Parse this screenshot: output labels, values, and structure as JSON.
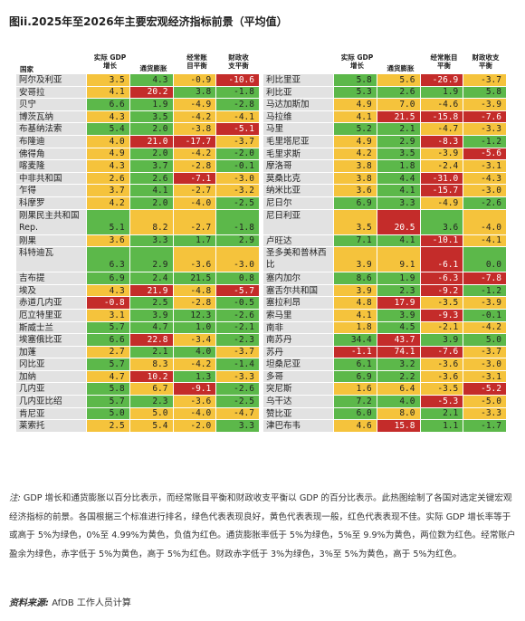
{
  "title": "图ii.2025年至2026年主要宏观经济指标前景（平均值）",
  "headers": {
    "country": "国家",
    "gdp": "实际 GDP\n增长",
    "inflation": "通货膨胀",
    "current_account": "经常账\n目平衡",
    "fiscal": "财政收\n支平衡"
  },
  "headers_right": {
    "gdp": "实际 GDP\n增长",
    "inflation": "通货膨胀",
    "current_account": "经常账目\n平衡",
    "fiscal": "财政收支\n平衡"
  },
  "colors": {
    "green": "#5cb84a",
    "yellow": "#f5c33c",
    "red": "#c42c2a"
  },
  "left_rows": [
    {
      "country": "阿尔及利亚",
      "v": [
        "3.5",
        "4.3",
        "-0.9",
        "-10.6"
      ],
      "c": [
        "y",
        "g",
        "y",
        "r"
      ]
    },
    {
      "country": "安哥拉",
      "v": [
        "4.1",
        "20.2",
        "3.8",
        "-1.8"
      ],
      "c": [
        "y",
        "r",
        "g",
        "g"
      ]
    },
    {
      "country": "贝宁",
      "v": [
        "6.6",
        "1.9",
        "-4.9",
        "-2.8"
      ],
      "c": [
        "g",
        "g",
        "y",
        "g"
      ]
    },
    {
      "country": "博茨瓦纳",
      "v": [
        "4.3",
        "3.5",
        "-4.2",
        "-4.1"
      ],
      "c": [
        "y",
        "g",
        "y",
        "y"
      ]
    },
    {
      "country": "布基纳法索",
      "v": [
        "5.4",
        "2.0",
        "-3.8",
        "-5.1"
      ],
      "c": [
        "g",
        "g",
        "y",
        "r"
      ]
    },
    {
      "country": "布隆迪",
      "v": [
        "4.0",
        "21.0",
        "-17.7",
        "-3.7"
      ],
      "c": [
        "y",
        "r",
        "r",
        "y"
      ]
    },
    {
      "country": "佛得角",
      "v": [
        "4.9",
        "2.0",
        "-4.2",
        "-2.0"
      ],
      "c": [
        "y",
        "g",
        "y",
        "g"
      ]
    },
    {
      "country": "喀麦隆",
      "v": [
        "4.3",
        "3.7",
        "-2.8",
        "-0.1"
      ],
      "c": [
        "y",
        "g",
        "y",
        "g"
      ]
    },
    {
      "country": "中非共和国",
      "v": [
        "2.6",
        "2.6",
        "-7.1",
        "-3.0"
      ],
      "c": [
        "y",
        "g",
        "r",
        "y"
      ]
    },
    {
      "country": "乍得",
      "v": [
        "3.7",
        "4.1",
        "-2.7",
        "-3.2"
      ],
      "c": [
        "y",
        "g",
        "y",
        "y"
      ]
    },
    {
      "country": "科摩罗",
      "v": [
        "4.2",
        "2.0",
        "-4.0",
        "-2.5"
      ],
      "c": [
        "y",
        "g",
        "y",
        "g"
      ]
    },
    {
      "country": "刚果民主共和国 Rep.",
      "v": [
        "5.1",
        "8.2",
        "-2.7",
        "-1.8"
      ],
      "c": [
        "g",
        "y",
        "y",
        "g"
      ],
      "tall": true
    },
    {
      "country": "刚果",
      "v": [
        "3.6",
        "3.3",
        "1.7",
        "2.9"
      ],
      "c": [
        "y",
        "g",
        "g",
        "g"
      ]
    },
    {
      "country": "科特迪瓦",
      "v": [
        "6.3",
        "2.9",
        "-3.6",
        "-3.0"
      ],
      "c": [
        "g",
        "g",
        "y",
        "y"
      ],
      "tall": true
    },
    {
      "country": "吉布提",
      "v": [
        "6.9",
        "2.4",
        "21.5",
        "0.8"
      ],
      "c": [
        "g",
        "g",
        "g",
        "g"
      ]
    },
    {
      "country": "埃及",
      "v": [
        "4.3",
        "21.9",
        "-4.8",
        "-5.7"
      ],
      "c": [
        "y",
        "r",
        "y",
        "r"
      ]
    },
    {
      "country": "赤道几内亚",
      "v": [
        "-0.8",
        "2.5",
        "-2.8",
        "-0.5"
      ],
      "c": [
        "r",
        "g",
        "y",
        "g"
      ]
    },
    {
      "country": "厄立特里亚",
      "v": [
        "3.1",
        "3.9",
        "12.3",
        "-2.6"
      ],
      "c": [
        "y",
        "g",
        "g",
        "g"
      ]
    },
    {
      "country": "斯威士兰",
      "v": [
        "5.7",
        "4.7",
        "1.0",
        "-2.1"
      ],
      "c": [
        "g",
        "g",
        "g",
        "g"
      ]
    },
    {
      "country": "埃塞俄比亚",
      "v": [
        "6.6",
        "22.8",
        "-3.4",
        "-2.3"
      ],
      "c": [
        "g",
        "r",
        "y",
        "g"
      ]
    },
    {
      "country": "加蓬",
      "v": [
        "2.7",
        "2.1",
        "4.0",
        "-3.7"
      ],
      "c": [
        "y",
        "g",
        "g",
        "y"
      ]
    },
    {
      "country": "冈比亚",
      "v": [
        "5.7",
        "8.3",
        "-4.2",
        "-1.4"
      ],
      "c": [
        "g",
        "y",
        "y",
        "g"
      ]
    },
    {
      "country": "加纳",
      "v": [
        "4.7",
        "10.2",
        "1.3",
        "-3.3"
      ],
      "c": [
        "y",
        "r",
        "g",
        "y"
      ]
    },
    {
      "country": "几内亚",
      "v": [
        "5.8",
        "6.7",
        "-9.1",
        "-2.6"
      ],
      "c": [
        "g",
        "y",
        "r",
        "g"
      ]
    },
    {
      "country": "几内亚比绍",
      "v": [
        "5.7",
        "2.3",
        "-3.6",
        "-2.5"
      ],
      "c": [
        "g",
        "g",
        "y",
        "g"
      ]
    },
    {
      "country": "肯尼亚",
      "v": [
        "5.0",
        "5.0",
        "-4.0",
        "-4.7"
      ],
      "c": [
        "g",
        "y",
        "y",
        "y"
      ]
    },
    {
      "country": "莱索托",
      "v": [
        "2.5",
        "5.4",
        "-2.0",
        "3.3"
      ],
      "c": [
        "y",
        "y",
        "y",
        "g"
      ]
    }
  ],
  "right_rows": [
    {
      "country": "利比里亚",
      "v": [
        "5.8",
        "5.6",
        "-26.9",
        "-3.7"
      ],
      "c": [
        "g",
        "y",
        "r",
        "y"
      ]
    },
    {
      "country": "利比亚",
      "v": [
        "5.3",
        "2.6",
        "1.9",
        "5.8"
      ],
      "c": [
        "g",
        "g",
        "g",
        "g"
      ]
    },
    {
      "country": "马达加斯加",
      "v": [
        "4.9",
        "7.0",
        "-4.6",
        "-3.9"
      ],
      "c": [
        "y",
        "y",
        "y",
        "y"
      ]
    },
    {
      "country": "马拉维",
      "v": [
        "4.1",
        "21.5",
        "-15.8",
        "-7.6"
      ],
      "c": [
        "y",
        "r",
        "r",
        "r"
      ]
    },
    {
      "country": "马里",
      "v": [
        "5.2",
        "2.1",
        "-4.7",
        "-3.3"
      ],
      "c": [
        "g",
        "g",
        "y",
        "y"
      ]
    },
    {
      "country": "毛里塔尼亚",
      "v": [
        "4.9",
        "2.9",
        "-8.3",
        "-1.2"
      ],
      "c": [
        "y",
        "g",
        "r",
        "g"
      ]
    },
    {
      "country": "毛里求斯",
      "v": [
        "4.2",
        "3.5",
        "-3.9",
        "-5.6"
      ],
      "c": [
        "y",
        "g",
        "y",
        "r"
      ]
    },
    {
      "country": "摩洛哥",
      "v": [
        "3.8",
        "1.8",
        "-2.4",
        "-3.1"
      ],
      "c": [
        "y",
        "g",
        "y",
        "y"
      ]
    },
    {
      "country": "莫桑比克",
      "v": [
        "3.8",
        "4.4",
        "-31.0",
        "-4.3"
      ],
      "c": [
        "y",
        "g",
        "r",
        "y"
      ]
    },
    {
      "country": "纳米比亚",
      "v": [
        "3.6",
        "4.1",
        "-15.7",
        "-3.0"
      ],
      "c": [
        "y",
        "g",
        "r",
        "y"
      ]
    },
    {
      "country": "尼日尔",
      "v": [
        "6.9",
        "3.3",
        "-4.9",
        "-2.6"
      ],
      "c": [
        "g",
        "g",
        "y",
        "g"
      ]
    },
    {
      "country": "尼日利亚",
      "v": [
        "3.5",
        "20.5",
        "3.6",
        "-4.0"
      ],
      "c": [
        "y",
        "r",
        "g",
        "y"
      ],
      "tall": true
    },
    {
      "country": "卢旺达",
      "v": [
        "7.1",
        "4.1",
        "-10.1",
        "-4.1"
      ],
      "c": [
        "g",
        "g",
        "r",
        "y"
      ]
    },
    {
      "country": "圣多美和普林西比",
      "v": [
        "3.9",
        "9.1",
        "-6.1",
        "0.0"
      ],
      "c": [
        "y",
        "y",
        "r",
        "g"
      ],
      "tall": true
    },
    {
      "country": "塞内加尔",
      "v": [
        "8.6",
        "1.9",
        "-6.3",
        "-7.8"
      ],
      "c": [
        "g",
        "g",
        "r",
        "r"
      ]
    },
    {
      "country": "塞舌尔共和国",
      "v": [
        "3.9",
        "2.3",
        "-9.2",
        "-1.2"
      ],
      "c": [
        "y",
        "g",
        "r",
        "g"
      ]
    },
    {
      "country": "塞拉利昂",
      "v": [
        "4.8",
        "17.9",
        "-3.5",
        "-3.9"
      ],
      "c": [
        "y",
        "r",
        "y",
        "y"
      ]
    },
    {
      "country": "索马里",
      "v": [
        "4.1",
        "3.9",
        "-9.3",
        "-0.1"
      ],
      "c": [
        "y",
        "g",
        "r",
        "g"
      ]
    },
    {
      "country": "南非",
      "v": [
        "1.8",
        "4.5",
        "-2.1",
        "-4.2"
      ],
      "c": [
        "y",
        "g",
        "y",
        "y"
      ]
    },
    {
      "country": "南苏丹",
      "v": [
        "34.4",
        "43.7",
        "3.9",
        "5.0"
      ],
      "c": [
        "g",
        "r",
        "g",
        "g"
      ]
    },
    {
      "country": "苏丹",
      "v": [
        "-1.1",
        "74.1",
        "-7.6",
        "-3.7"
      ],
      "c": [
        "r",
        "r",
        "r",
        "y"
      ]
    },
    {
      "country": "坦桑尼亚",
      "v": [
        "6.1",
        "3.2",
        "-3.6",
        "-3.0"
      ],
      "c": [
        "g",
        "g",
        "y",
        "y"
      ]
    },
    {
      "country": "多哥",
      "v": [
        "6.9",
        "2.2",
        "-3.6",
        "-3.1"
      ],
      "c": [
        "g",
        "g",
        "y",
        "y"
      ]
    },
    {
      "country": "突尼斯",
      "v": [
        "1.6",
        "6.4",
        "-3.5",
        "-5.2"
      ],
      "c": [
        "y",
        "y",
        "y",
        "r"
      ]
    },
    {
      "country": "乌干达",
      "v": [
        "7.2",
        "4.0",
        "-5.3",
        "-5.0"
      ],
      "c": [
        "g",
        "g",
        "r",
        "y"
      ]
    },
    {
      "country": "赞比亚",
      "v": [
        "6.0",
        "8.0",
        "2.1",
        "-3.3"
      ],
      "c": [
        "g",
        "y",
        "g",
        "y"
      ]
    },
    {
      "country": "津巴布韦",
      "v": [
        "4.6",
        "15.8",
        "1.1",
        "-1.7"
      ],
      "c": [
        "y",
        "r",
        "g",
        "g"
      ]
    }
  ],
  "note": {
    "label": "注:",
    "text": "GDP 增长和通货膨胀以百分比表示，而经常账目平衡和财政收支平衡以 GDP 的百分比表示。此热图绘制了各国对选定关键宏观经济指标的前景。各国根据三个标准进行排名，绿色代表表现良好，黄色代表表现一般，红色代表表现不佳。实际 GDP 增长率等于或高于 5%为绿色，0%至 4.99%为黄色，负值为红色。通货膨胀率低于 5%为绿色，5%至 9.9%为黄色，两位数为红色。经常账户盈余为绿色，赤字低于 5%为黄色，高于 5%为红色。财政赤字低于 3%为绿色，3%至 5%为黄色，高于 5%为红色。"
  },
  "source": {
    "label": "资料来源:",
    "text": "AfDB 工作人员计算"
  }
}
